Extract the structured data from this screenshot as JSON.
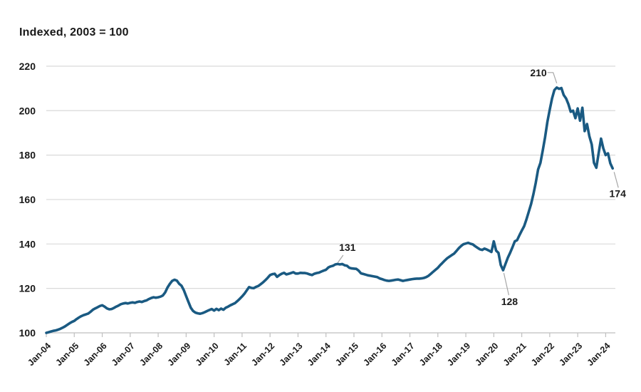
{
  "header": {
    "title": "Indexed, 2003 = 100"
  },
  "chart_data": {
    "type": "line",
    "title": "Indexed, 2003 = 100",
    "x_unit": "month",
    "x_start": "Jan-2004",
    "x_end": "Apr-2024",
    "x_tick_labels": [
      "Jan-04",
      "Jan-05",
      "Jan-06",
      "Jan-07",
      "Jan-08",
      "Jan-09",
      "Jan-10",
      "Jan-11",
      "Jan-12",
      "Jan-13",
      "Jan-14",
      "Jan-15",
      "Jan-16",
      "Jan-17",
      "Jan-18",
      "Jan-19",
      "Jan-20",
      "Jan-21",
      "Jan-22",
      "Jan-23",
      "Jan-24"
    ],
    "y_ticks": [
      100,
      120,
      140,
      160,
      180,
      200,
      220
    ],
    "ylim": [
      100,
      220
    ],
    "grid": "horizontal",
    "legend": "none",
    "colors": {
      "line": "#1a5a82",
      "grid": "#d9d9d9",
      "axis": "#bfbfbf",
      "text": "#1a1a1a",
      "callout": "#a6a6a6"
    },
    "series": [
      {
        "name": "Index (2003 = 100)",
        "values": [
          100.0,
          100.3,
          100.6,
          100.9,
          101.1,
          101.4,
          101.8,
          102.3,
          102.9,
          103.6,
          104.3,
          104.9,
          105.4,
          106.2,
          106.9,
          107.5,
          108.0,
          108.3,
          108.7,
          109.5,
          110.4,
          111.0,
          111.5,
          112.1,
          112.4,
          111.8,
          111.0,
          110.6,
          110.7,
          111.2,
          111.8,
          112.3,
          112.9,
          113.2,
          113.4,
          113.2,
          113.5,
          113.7,
          113.5,
          113.9,
          114.1,
          113.9,
          114.3,
          114.6,
          115.2,
          115.7,
          116.0,
          115.8,
          116.0,
          116.3,
          116.8,
          118.2,
          120.4,
          122.0,
          123.4,
          123.9,
          123.5,
          122.1,
          121.2,
          119.2,
          116.5,
          113.9,
          111.3,
          109.8,
          109.1,
          108.8,
          108.6,
          108.9,
          109.3,
          109.8,
          110.3,
          110.7,
          110.0,
          110.8,
          110.2,
          110.9,
          110.4,
          111.3,
          111.8,
          112.4,
          112.9,
          113.4,
          114.3,
          115.3,
          116.4,
          117.6,
          119.1,
          120.6,
          120.2,
          120.1,
          120.7,
          121.1,
          121.9,
          122.7,
          123.7,
          124.8,
          126.0,
          126.4,
          126.6,
          125.2,
          126.0,
          126.6,
          127.0,
          126.3,
          126.6,
          126.9,
          127.3,
          126.7,
          126.7,
          127.0,
          126.9,
          126.9,
          126.7,
          126.3,
          126.0,
          126.6,
          126.9,
          127.1,
          127.6,
          128.0,
          128.4,
          129.4,
          129.9,
          130.2,
          130.8,
          131.0,
          130.8,
          131.0,
          130.4,
          130.2,
          129.3,
          129.0,
          128.9,
          128.8,
          128.0,
          126.8,
          126.5,
          126.2,
          125.9,
          125.7,
          125.5,
          125.3,
          125.1,
          124.5,
          124.2,
          123.8,
          123.5,
          123.4,
          123.5,
          123.7,
          123.9,
          124.0,
          123.7,
          123.4,
          123.6,
          123.8,
          124.0,
          124.2,
          124.3,
          124.4,
          124.4,
          124.5,
          124.7,
          125.1,
          125.7,
          126.6,
          127.5,
          128.4,
          129.3,
          130.5,
          131.5,
          132.6,
          133.6,
          134.3,
          135.0,
          135.7,
          136.9,
          138.1,
          139.1,
          139.9,
          140.2,
          140.5,
          140.1,
          139.8,
          139.0,
          138.3,
          137.6,
          137.3,
          137.9,
          137.5,
          137.0,
          136.4,
          141.2,
          137.0,
          136.0,
          130.5,
          128.2,
          131.0,
          133.8,
          136.0,
          138.5,
          141.2,
          141.7,
          143.9,
          146.0,
          148.0,
          151.0,
          154.5,
          158.0,
          162.5,
          167.5,
          173.5,
          176.5,
          182.0,
          188.0,
          195.0,
          200.5,
          205.5,
          209.3,
          210.4,
          209.8,
          210.2,
          207.0,
          205.5,
          203.0,
          199.5,
          200.0,
          196.6,
          201.0,
          195.5,
          201.3,
          190.8,
          194.0,
          188.5,
          184.8,
          176.5,
          174.3,
          181.0,
          187.4,
          183.0,
          180.0,
          180.8,
          176.3,
          174.0
        ]
      }
    ],
    "annotations": [
      {
        "label": "131",
        "x": "May-2014",
        "month_index": 124,
        "value": 131
      },
      {
        "label": "210",
        "x": "Apr-2022",
        "month_index": 219,
        "value": 210
      },
      {
        "label": "128",
        "x": "May-2020",
        "month_index": 196,
        "value": 128
      },
      {
        "label": "174",
        "x": "Apr-2024",
        "month_index": 243,
        "value": 174
      }
    ]
  }
}
